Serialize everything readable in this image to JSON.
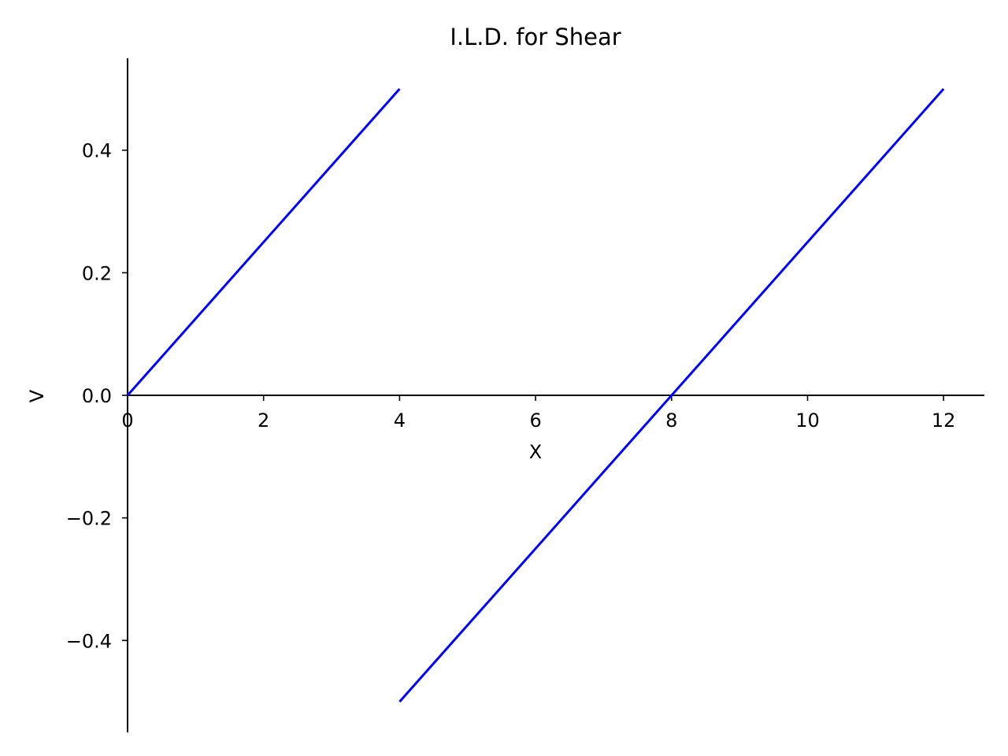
{
  "chart_data": {
    "type": "line",
    "title": "I.L.D. for Shear",
    "xlabel": "X",
    "ylabel": "V",
    "xlim": [
      0,
      12.6
    ],
    "ylim": [
      -0.55,
      0.55
    ],
    "xticks": [
      0,
      2,
      4,
      6,
      8,
      10,
      12
    ],
    "yticks": [
      -0.4,
      -0.2,
      0.0,
      0.2,
      0.4
    ],
    "xtick_labels": [
      "0",
      "2",
      "4",
      "6",
      "8",
      "10",
      "12"
    ],
    "ytick_labels": [
      "−0.4",
      "−0.2",
      "0.0",
      "0.2",
      "0.4"
    ],
    "grid": false,
    "spines": "centered at origin (left and bottom axes pass through 0)",
    "series": [
      {
        "color": "#0000ff",
        "segments": [
          {
            "x": [
              0,
              4
            ],
            "y": [
              0.0,
              0.5
            ]
          },
          {
            "x": [
              4,
              12
            ],
            "y": [
              -0.5,
              0.5
            ]
          }
        ]
      }
    ]
  }
}
